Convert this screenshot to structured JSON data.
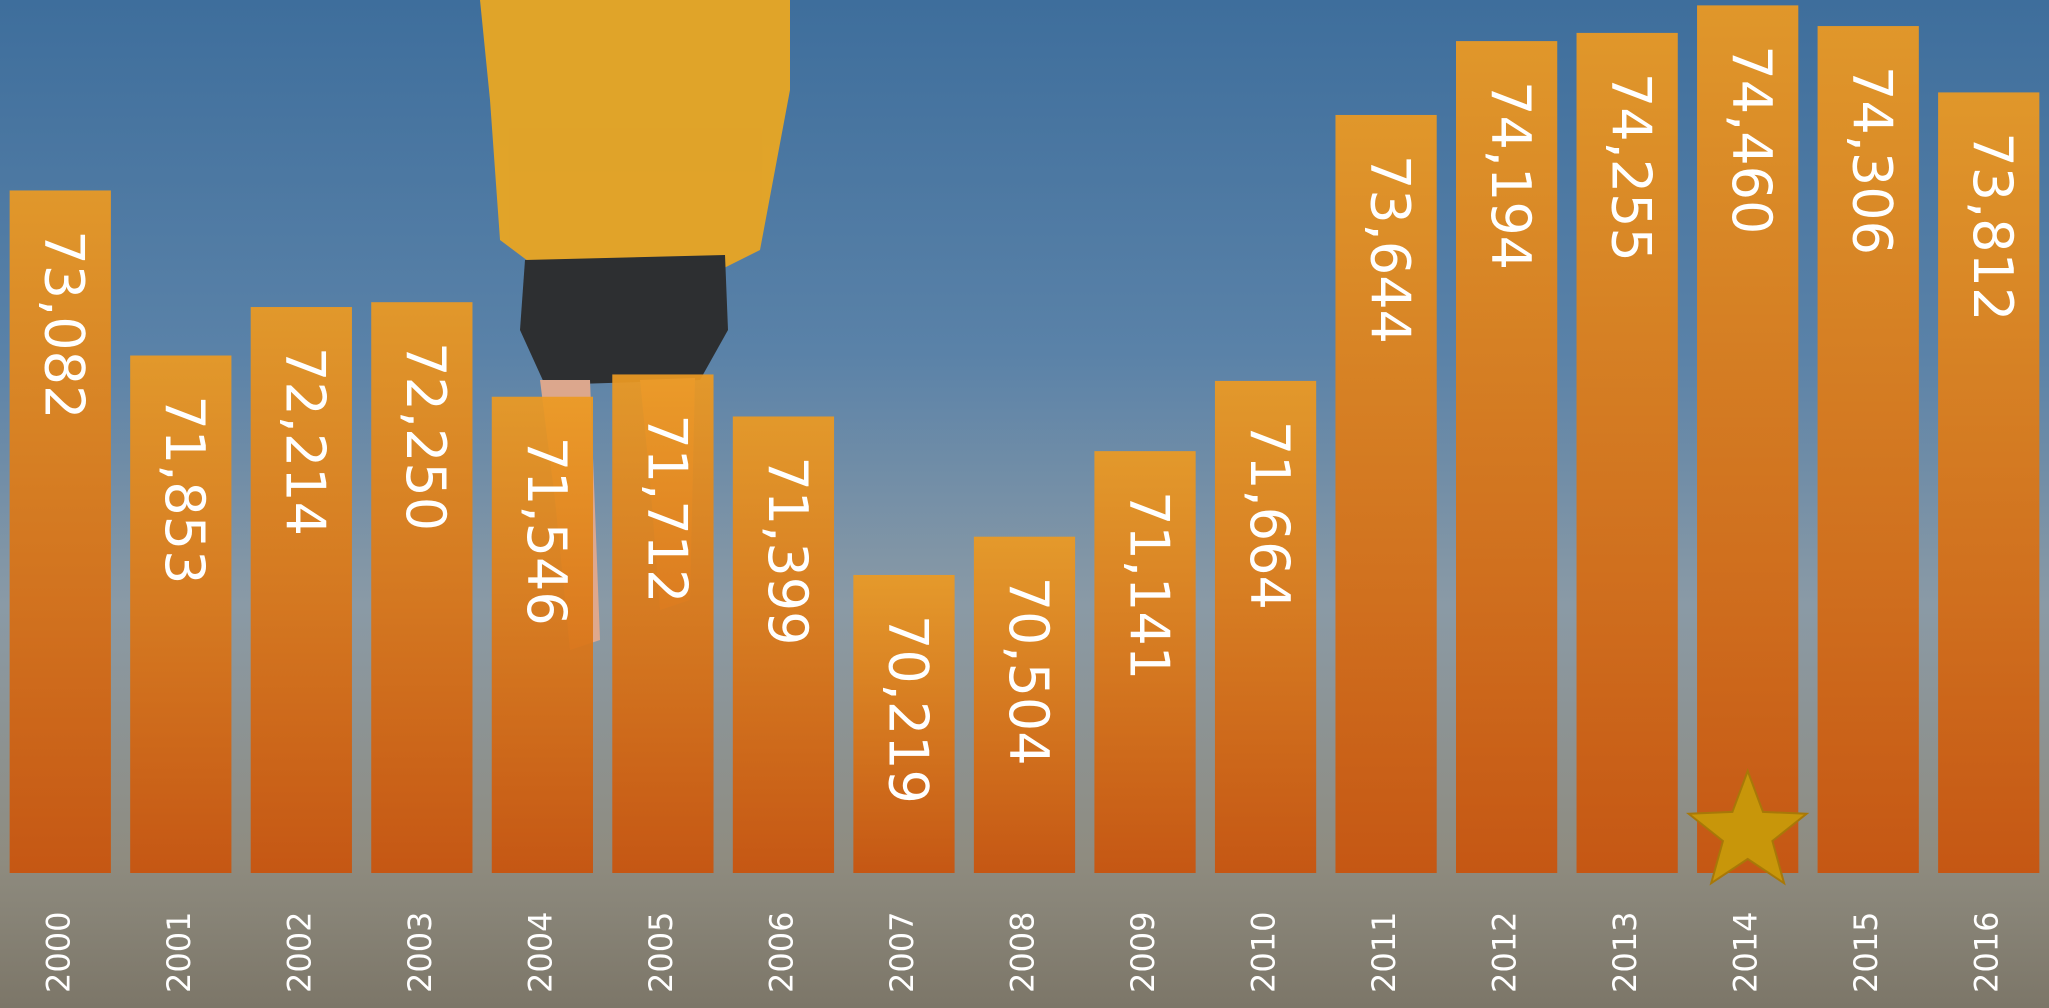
{
  "chart_data": {
    "type": "bar",
    "categories": [
      "2000",
      "2001",
      "2002",
      "2003",
      "2004",
      "2005",
      "2006",
      "2007",
      "2008",
      "2009",
      "2010",
      "2011",
      "2012",
      "2013",
      "2014",
      "2015",
      "2016"
    ],
    "values": [
      73082,
      71853,
      72214,
      72250,
      71546,
      71712,
      71399,
      70219,
      70504,
      71141,
      71664,
      73644,
      74194,
      74255,
      74460,
      74306,
      73812
    ],
    "value_labels": [
      "73,082",
      "71,853",
      "72,214",
      "72,250",
      "71,546",
      "71,712",
      "71,399",
      "70,219",
      "70,504",
      "71,141",
      "71,664",
      "73,644",
      "74,194",
      "74,255",
      "74,460",
      "74,306",
      "73,812"
    ],
    "color": "#e0741a",
    "ylim": [
      68000,
      74500
    ],
    "highlight": "2014"
  }
}
